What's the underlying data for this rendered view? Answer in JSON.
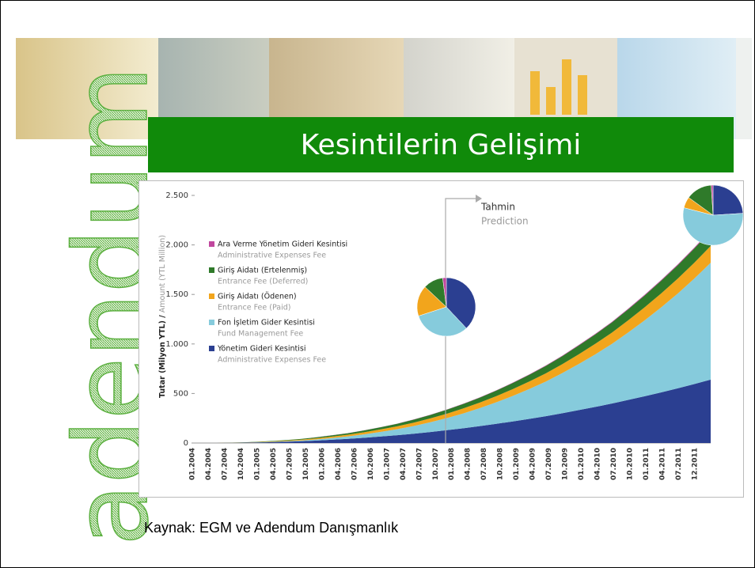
{
  "logo": "adendum",
  "slide_title": "Kesintilerin Gelişimi",
  "source": "Kaynak: EGM ve Adendum Danışmanlık",
  "chart_data": {
    "type": "stacked_area",
    "ylabel": [
      "Tutar (Milyon YTL) /",
      "Amount (YTL Million)"
    ],
    "annotation": [
      "Tahmin",
      "Prediction"
    ],
    "categories": [
      "01.2004",
      "04.2004",
      "07.2004",
      "10.2004",
      "01.2005",
      "04.2005",
      "07.2005",
      "10.2005",
      "01.2006",
      "04.2006",
      "07.2006",
      "10.2006",
      "01.2007",
      "04.2007",
      "07.2007",
      "10.2007",
      "01.2008",
      "04.2008",
      "07.2008",
      "10.2008",
      "01.2009",
      "04.2009",
      "07.2009",
      "10.2009",
      "01.2010",
      "04.2010",
      "07.2010",
      "10.2010",
      "01.2011",
      "04.2011",
      "07.2011",
      "12.2011"
    ],
    "ylim": [
      0,
      2500
    ],
    "yticks": [
      0,
      500,
      {
        "value": 1000,
        "label": "1.000"
      },
      {
        "value": 1500,
        "label": "1.500"
      },
      {
        "value": 2000,
        "label": "2.000"
      },
      {
        "value": 2500,
        "label": "2.500"
      }
    ],
    "series": [
      {
        "name": "Yönetim Gideri Kesintisi",
        "name_en": "Administrative Expenses Fee",
        "color": "#2b3f91",
        "values": [
          0,
          0,
          2,
          4,
          7,
          12,
          17,
          24,
          33,
          42,
          53,
          66,
          79,
          94,
          111,
          130,
          149,
          171,
          194,
          218,
          244,
          271,
          301,
          332,
          364,
          398,
          435,
          472,
          511,
          552,
          595,
          640
        ]
      },
      {
        "name": "Fon İşletim Gider Kesintisi",
        "name_en": "Fund Management Fee",
        "color": "#86cbdc",
        "values": [
          0,
          0,
          0,
          1,
          2,
          4,
          7,
          11,
          17,
          25,
          35,
          47,
          61,
          78,
          99,
          122,
          150,
          181,
          217,
          257,
          301,
          349,
          405,
          466,
          531,
          601,
          681,
          767,
          859,
          957,
          1064,
          1180
        ]
      },
      {
        "name": "Giriş Aidatı (Ödenen)",
        "name_en": "Entrance Fee (Paid)",
        "color": "#f2a51c",
        "values": [
          0,
          0,
          1,
          2,
          4,
          6,
          8,
          11,
          14,
          17,
          21,
          25,
          29,
          34,
          39,
          44,
          50,
          56,
          62,
          69,
          76,
          83,
          90,
          98,
          106,
          114,
          123,
          132,
          141,
          150,
          160,
          170
        ]
      },
      {
        "name": "Giriş Aidatı (Ertelenmiş)",
        "name_en": "Entrance Fee (Deferred)",
        "color": "#2f7a2a",
        "values": [
          0,
          0,
          1,
          2,
          4,
          5,
          7,
          10,
          13,
          15,
          19,
          22,
          26,
          31,
          35,
          40,
          45,
          50,
          56,
          62,
          68,
          75,
          81,
          88,
          95,
          103,
          111,
          119,
          127,
          135,
          144,
          150
        ]
      },
      {
        "name": "Ara Verme Yönetim Gideri Kesintisi",
        "name_en": "Administrative Expenses Fee",
        "color": "#c0479e",
        "values": [
          0,
          0,
          0,
          0,
          0,
          0,
          0,
          1,
          1,
          1,
          1,
          1,
          1,
          2,
          2,
          2,
          3,
          3,
          3,
          4,
          4,
          5,
          5,
          6,
          6,
          6,
          7,
          8,
          8,
          9,
          9,
          10
        ]
      }
    ],
    "pies": [
      {
        "values": [
          38,
          32,
          17,
          11,
          2
        ]
      },
      {
        "values": [
          24,
          55,
          6,
          14,
          1
        ]
      }
    ]
  }
}
